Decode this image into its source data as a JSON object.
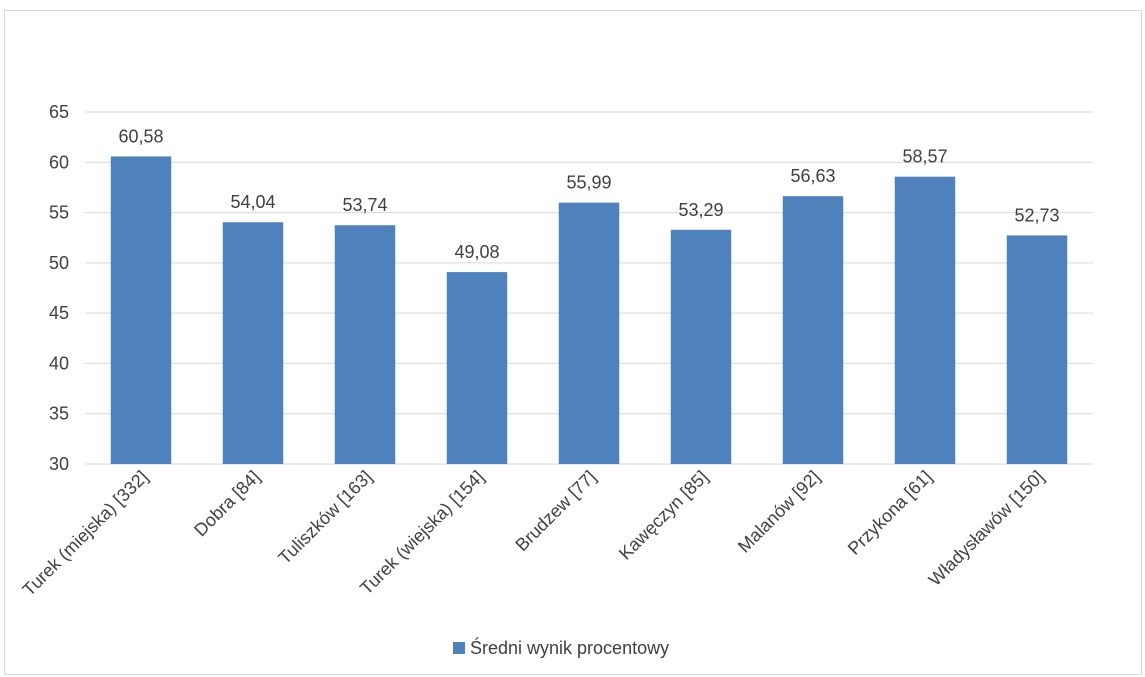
{
  "chart_data": {
    "type": "bar",
    "categories": [
      "Turek (miejska) [332]",
      "Dobra [84]",
      "Tuliszków [163]",
      "Turek (wiejska) [154]",
      "Brudzew [77]",
      "Kawęczyn [85]",
      "Malanów [92]",
      "Przykona [61]",
      "Władysławów [150]"
    ],
    "series": [
      {
        "name": "Średni wynik procentowy",
        "values": [
          60.58,
          54.04,
          53.74,
          49.08,
          55.99,
          53.29,
          56.63,
          58.57,
          52.73
        ],
        "value_labels": [
          "60,58",
          "54,04",
          "53,74",
          "49,08",
          "55,99",
          "53,29",
          "56,63",
          "58,57",
          "52,73"
        ]
      }
    ],
    "ylim": [
      30,
      65
    ],
    "yticks": [
      30,
      35,
      40,
      45,
      50,
      55,
      60,
      65
    ],
    "grid": true,
    "legend": "bottom",
    "colors": {
      "bar": "#4f81bd",
      "grid": "#d9d9d9",
      "text": "#404040"
    }
  }
}
